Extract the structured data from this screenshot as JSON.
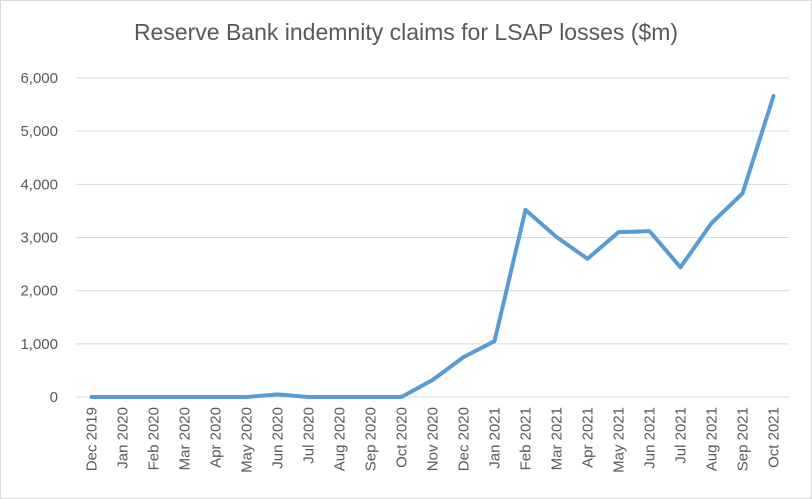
{
  "chart_data": {
    "type": "line",
    "title": "Reserve Bank indemnity claims for LSAP losses ($m)",
    "categories": [
      "Dec 2019",
      "Jan 2020",
      "Feb 2020",
      "Mar 2020",
      "Apr 2020",
      "May 2020",
      "Jun 2020",
      "Jul 2020",
      "Aug 2020",
      "Sep 2020",
      "Oct 2020",
      "Nov 2020",
      "Dec 2020",
      "Jan 2021",
      "Feb 2021",
      "Mar 2021",
      "Apr 2021",
      "May 2021",
      "Jun 2021",
      "Jul 2021",
      "Aug 2021",
      "Sep 2021",
      "Oct 2021"
    ],
    "values": [
      0,
      0,
      0,
      0,
      0,
      0,
      50,
      0,
      0,
      0,
      0,
      320,
      750,
      1050,
      3520,
      3010,
      2600,
      3100,
      3120,
      2440,
      3270,
      3830,
      5660
    ],
    "color": "#5b9bd5",
    "ylim": [
      0,
      6000
    ],
    "yticks": [
      {
        "value": 0,
        "label": "0"
      },
      {
        "value": 1000,
        "label": "1,000"
      },
      {
        "value": 2000,
        "label": "2,000"
      },
      {
        "value": 3000,
        "label": "3,000"
      },
      {
        "value": 4000,
        "label": "4,000"
      },
      {
        "value": 5000,
        "label": "5,000"
      },
      {
        "value": 6000,
        "label": "6,000"
      }
    ],
    "grid": true
  }
}
